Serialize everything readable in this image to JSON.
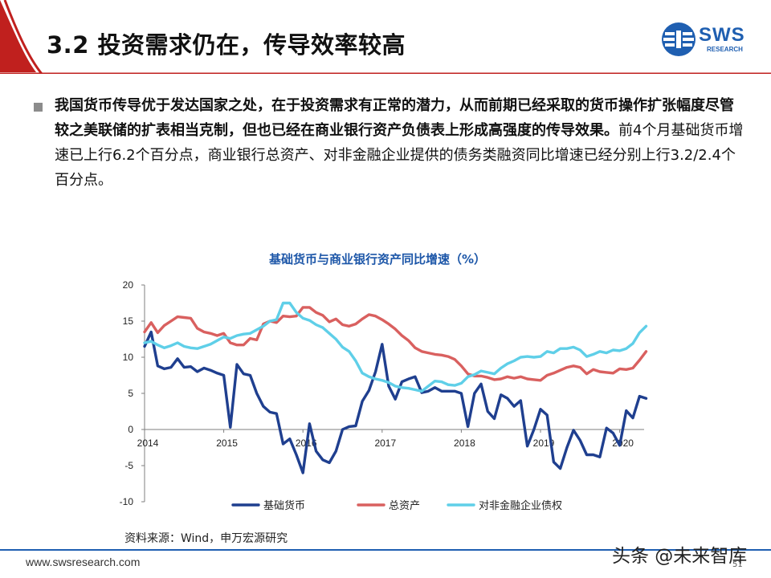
{
  "header": {
    "title": "3.2 投资需求仍在，传导效率较高",
    "logo_text": "SWS",
    "logo_sub": "RESEARCH",
    "colors": {
      "accent_red": "#c0201e",
      "brand_blue": "#1f5fb1"
    }
  },
  "body": {
    "bold_text": "我国货币传导优于发达国家之处，在于投资需求有正常的潜力，从而前期已经采取的货币操作扩张幅度尽管较之美联储的扩表相当克制，但也已经在商业银行资产负债表上形成高强度的传导效果。",
    "normal_text": "前4个月基础货币增速已上行6.2个百分点，商业银行总资产、对非金融企业提供的债务类融资同比增速已经分别上行3.2/2.4个百分点。"
  },
  "chart_data": {
    "type": "line",
    "title": "基础货币与商业银行资产同比增速（%）",
    "xlabel": "",
    "ylabel": "",
    "ylim": [
      -10,
      20
    ],
    "yticks": [
      "20",
      "15",
      "10",
      "5",
      "0",
      "-5",
      "-10"
    ],
    "xticks": [
      "2014",
      "2015",
      "2016",
      "2017",
      "2018",
      "2019",
      "2020"
    ],
    "x_start": "2014-01",
    "x_end": "2020-04",
    "frequency": "monthly",
    "legend_position": "bottom",
    "grid": false,
    "series": [
      {
        "name": "基础货币",
        "color": "#1f3f8f",
        "values": [
          11.5,
          13.5,
          8.8,
          8.4,
          8.6,
          9.8,
          8.6,
          8.7,
          8.0,
          8.5,
          8.2,
          7.8,
          7.5,
          0.3,
          9.0,
          7.7,
          7.5,
          5.0,
          3.2,
          2.4,
          2.2,
          -2.0,
          -1.3,
          -3.5,
          -6.0,
          0.8,
          -3.0,
          -4.2,
          -4.6,
          -3.0,
          0.0,
          0.4,
          0.5,
          3.9,
          5.4,
          8.0,
          11.8,
          6.0,
          4.2,
          6.6,
          7.0,
          7.3,
          5.1,
          5.3,
          5.8,
          5.3,
          5.3,
          5.3,
          5.0,
          0.4,
          5.0,
          6.3,
          2.5,
          1.5,
          4.8,
          4.3,
          3.2,
          4.0,
          -2.3,
          0.0,
          2.8,
          2.0,
          -4.5,
          -5.4,
          -2.5,
          -0.1,
          -1.5,
          -3.5,
          -3.5,
          -3.8,
          0.2,
          -0.5,
          -2.2,
          2.6,
          1.6,
          4.6,
          4.3
        ]
      },
      {
        "name": "总资产",
        "color": "#d9605f",
        "values": [
          13.5,
          14.8,
          13.4,
          14.4,
          15.0,
          15.6,
          15.5,
          15.4,
          14.0,
          13.5,
          13.3,
          13.0,
          13.3,
          12.0,
          11.7,
          11.7,
          12.6,
          12.4,
          14.6,
          15.0,
          14.8,
          15.7,
          15.6,
          15.7,
          16.9,
          16.9,
          16.2,
          15.8,
          14.9,
          15.3,
          14.5,
          14.3,
          14.6,
          15.3,
          15.9,
          15.7,
          15.2,
          14.6,
          13.9,
          13.0,
          12.3,
          11.3,
          10.8,
          10.6,
          10.4,
          10.3,
          10.1,
          9.7,
          8.8,
          7.7,
          7.4,
          7.4,
          7.2,
          6.9,
          7.0,
          7.3,
          7.1,
          7.3,
          7.0,
          6.9,
          6.8,
          7.5,
          7.8,
          8.2,
          8.6,
          8.8,
          8.6,
          7.7,
          8.3,
          8.0,
          7.9,
          7.8,
          8.4,
          8.3,
          8.5,
          9.6,
          10.8
        ]
      },
      {
        "name": "对非金融企业债权",
        "color": "#5fcfe8",
        "values": [
          12.0,
          12.2,
          11.7,
          11.3,
          11.6,
          12.0,
          11.5,
          11.3,
          11.2,
          11.5,
          11.8,
          12.3,
          12.8,
          12.6,
          13.0,
          13.2,
          13.3,
          13.8,
          14.3,
          15.0,
          15.2,
          17.5,
          17.5,
          16.2,
          15.4,
          15.1,
          14.5,
          14.1,
          13.3,
          12.5,
          11.4,
          10.8,
          9.5,
          7.8,
          7.3,
          7.0,
          6.8,
          6.5,
          6.0,
          5.8,
          5.7,
          5.5,
          5.3,
          6.0,
          6.7,
          6.6,
          6.2,
          6.1,
          6.4,
          7.3,
          7.6,
          8.1,
          7.9,
          7.7,
          8.5,
          9.1,
          9.5,
          10.0,
          10.1,
          10.0,
          10.1,
          10.8,
          10.6,
          11.2,
          11.2,
          11.4,
          11.0,
          10.1,
          10.4,
          10.8,
          10.6,
          11.0,
          10.9,
          11.2,
          11.9,
          13.4,
          14.3
        ]
      }
    ]
  },
  "source": "资料来源：Wind，申万宏源研究",
  "footer": {
    "url": "www.swsresearch.com",
    "page": "51",
    "watermark": "头条 @未来智库"
  }
}
